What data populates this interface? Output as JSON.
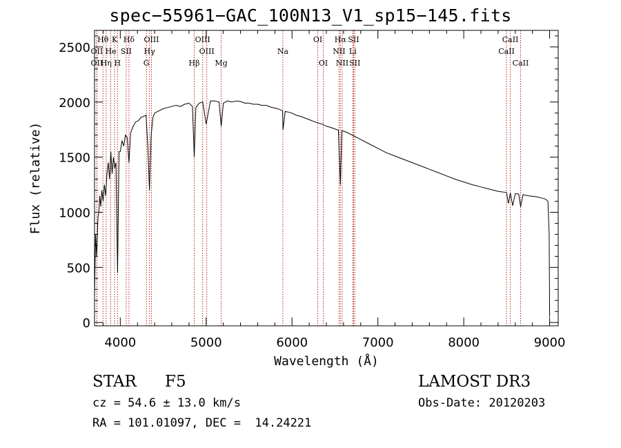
{
  "chart_data": {
    "type": "line",
    "title": "spec−55961−GAC_100N13_V1_sp15−145.fits",
    "xlabel": "Wavelength (Å)",
    "ylabel": "Flux (relative)",
    "xlim": [
      3700,
      9100
    ],
    "ylim": [
      -30,
      2650
    ],
    "xticks": [
      4000,
      5000,
      6000,
      7000,
      8000,
      9000
    ],
    "yticks": [
      0,
      500,
      1000,
      1500,
      2000,
      2500
    ],
    "grid": false,
    "line_color": "#000000",
    "marker_color": "#b22222",
    "series": [
      {
        "name": "spectrum",
        "x": [
          3700,
          3712,
          3725,
          3740,
          3750,
          3760,
          3772,
          3785,
          3800,
          3815,
          3830,
          3845,
          3860,
          3875,
          3890,
          3905,
          3920,
          3935,
          3950,
          3968,
          3985,
          4000,
          4020,
          4040,
          4060,
          4080,
          4101,
          4120,
          4150,
          4180,
          4210,
          4240,
          4270,
          4300,
          4320,
          4340,
          4360,
          4380,
          4400,
          4450,
          4500,
          4550,
          4600,
          4650,
          4700,
          4750,
          4800,
          4840,
          4861,
          4880,
          4920,
          4960,
          5000,
          5050,
          5100,
          5150,
          5175,
          5200,
          5250,
          5300,
          5350,
          5400,
          5450,
          5500,
          5550,
          5600,
          5650,
          5700,
          5750,
          5800,
          5850,
          5890,
          5895,
          5920,
          5950,
          6000,
          6050,
          6100,
          6150,
          6200,
          6250,
          6300,
          6350,
          6400,
          6450,
          6500,
          6540,
          6563,
          6580,
          6620,
          6650,
          6700,
          6750,
          6800,
          6900,
          7000,
          7100,
          7200,
          7300,
          7400,
          7500,
          7600,
          7700,
          7800,
          7900,
          8000,
          8100,
          8200,
          8300,
          8400,
          8498,
          8520,
          8542,
          8570,
          8600,
          8640,
          8662,
          8690,
          8750,
          8800,
          8850,
          8900,
          8950,
          8980,
          8995,
          9000
        ],
        "y": [
          250,
          800,
          600,
          950,
          1000,
          1150,
          1050,
          1200,
          1100,
          1250,
          1150,
          1350,
          1450,
          1300,
          1550,
          1350,
          1500,
          1400,
          1450,
          450,
          1550,
          1550,
          1650,
          1600,
          1700,
          1680,
          1450,
          1720,
          1780,
          1820,
          1830,
          1860,
          1870,
          1880,
          1600,
          1200,
          1700,
          1860,
          1900,
          1920,
          1940,
          1950,
          1960,
          1970,
          1960,
          1980,
          1990,
          1960,
          1500,
          1950,
          1990,
          2000,
          1800,
          2010,
          2010,
          2000,
          1780,
          1990,
          2010,
          2000,
          2010,
          2005,
          1990,
          1990,
          1980,
          1980,
          1970,
          1970,
          1955,
          1945,
          1935,
          1920,
          1750,
          1915,
          1910,
          1900,
          1880,
          1870,
          1855,
          1840,
          1825,
          1810,
          1800,
          1780,
          1770,
          1755,
          1745,
          1250,
          1740,
          1730,
          1720,
          1700,
          1680,
          1660,
          1620,
          1580,
          1540,
          1510,
          1480,
          1450,
          1420,
          1390,
          1360,
          1330,
          1300,
          1275,
          1250,
          1230,
          1210,
          1190,
          1180,
          1080,
          1175,
          1060,
          1170,
          1165,
          1050,
          1160,
          1150,
          1145,
          1140,
          1130,
          1120,
          1100,
          800,
          50
        ]
      }
    ],
    "line_markers": [
      {
        "label": "Hθ",
        "x": 3798,
        "row": 1
      },
      {
        "label": "OII",
        "x": 3727,
        "row": 2
      },
      {
        "label": "OII",
        "x": 3727,
        "row": 3
      },
      {
        "label": "Hη",
        "x": 3835,
        "row": 3
      },
      {
        "label": "He",
        "x": 3889,
        "row": 2
      },
      {
        "label": "K",
        "x": 3934,
        "row": 1
      },
      {
        "label": "SII",
        "x": 4069,
        "row": 2
      },
      {
        "label": "H",
        "x": 3968,
        "row": 3
      },
      {
        "label": "Hδ",
        "x": 4101,
        "row": 1
      },
      {
        "label": "OIII",
        "x": 4363,
        "row": 1
      },
      {
        "label": "Hγ",
        "x": 4340,
        "row": 2
      },
      {
        "label": "G",
        "x": 4304,
        "row": 3
      },
      {
        "label": "Hβ",
        "x": 4861,
        "row": 3
      },
      {
        "label": "OIII",
        "x": 4959,
        "row": 1
      },
      {
        "label": "OIII",
        "x": 5007,
        "row": 2
      },
      {
        "label": "Mg",
        "x": 5175,
        "row": 3
      },
      {
        "label": "Na",
        "x": 5893,
        "row": 2
      },
      {
        "label": "OI",
        "x": 6300,
        "row": 1
      },
      {
        "label": "OI",
        "x": 6364,
        "row": 3
      },
      {
        "label": "Hα",
        "x": 6563,
        "row": 1
      },
      {
        "label": "NII",
        "x": 6548,
        "row": 2
      },
      {
        "label": "NII",
        "x": 6584,
        "row": 3
      },
      {
        "label": "SII",
        "x": 6717,
        "row": 1
      },
      {
        "label": "Li",
        "x": 6708,
        "row": 2
      },
      {
        "label": "SII",
        "x": 6731,
        "row": 3
      },
      {
        "label": "CaII",
        "x": 8542,
        "row": 1
      },
      {
        "label": "CaII",
        "x": 8498,
        "row": 2
      },
      {
        "label": "CaII",
        "x": 8662,
        "row": 3
      }
    ]
  },
  "info": {
    "object_type": "STAR",
    "subclass": "F5",
    "survey": "LAMOST DR3",
    "cz": "cz = 54.6 ± 13.0 km/s",
    "obs_date": "Obs-Date: 20120203",
    "radec": "RA = 101.01097, DEC =  14.24221"
  }
}
